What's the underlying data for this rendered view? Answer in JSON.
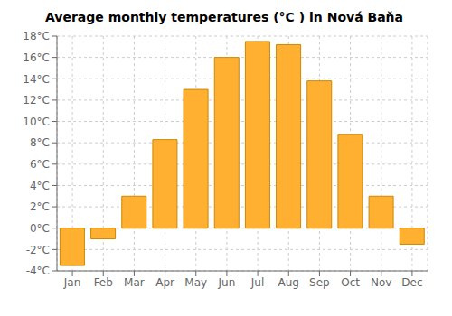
{
  "chart_data": {
    "type": "bar",
    "title": "Average monthly temperatures (°C ) in Nová Baňa",
    "categories": [
      "Jan",
      "Feb",
      "Mar",
      "Apr",
      "May",
      "Jun",
      "Jul",
      "Aug",
      "Sep",
      "Oct",
      "Nov",
      "Dec"
    ],
    "values": [
      -3.5,
      -1.0,
      3.0,
      8.3,
      13.0,
      16.0,
      17.5,
      17.2,
      13.8,
      8.8,
      3.0,
      -1.5
    ],
    "color": "#FFB030",
    "ylim": [
      -4,
      18
    ],
    "yticks": [
      {
        "value": -4,
        "label": "-4°C"
      },
      {
        "value": -2,
        "label": "-2°C"
      },
      {
        "value": 0,
        "label": "0°C"
      },
      {
        "value": 2,
        "label": "2°C"
      },
      {
        "value": 4,
        "label": "4°C"
      },
      {
        "value": 6,
        "label": "6°C"
      },
      {
        "value": 8,
        "label": "8°C"
      },
      {
        "value": 10,
        "label": "10°C"
      },
      {
        "value": 12,
        "label": "12°C"
      },
      {
        "value": 14,
        "label": "14°C"
      },
      {
        "value": 16,
        "label": "16°C"
      },
      {
        "value": 18,
        "label": "18°C"
      }
    ],
    "grid": true
  }
}
